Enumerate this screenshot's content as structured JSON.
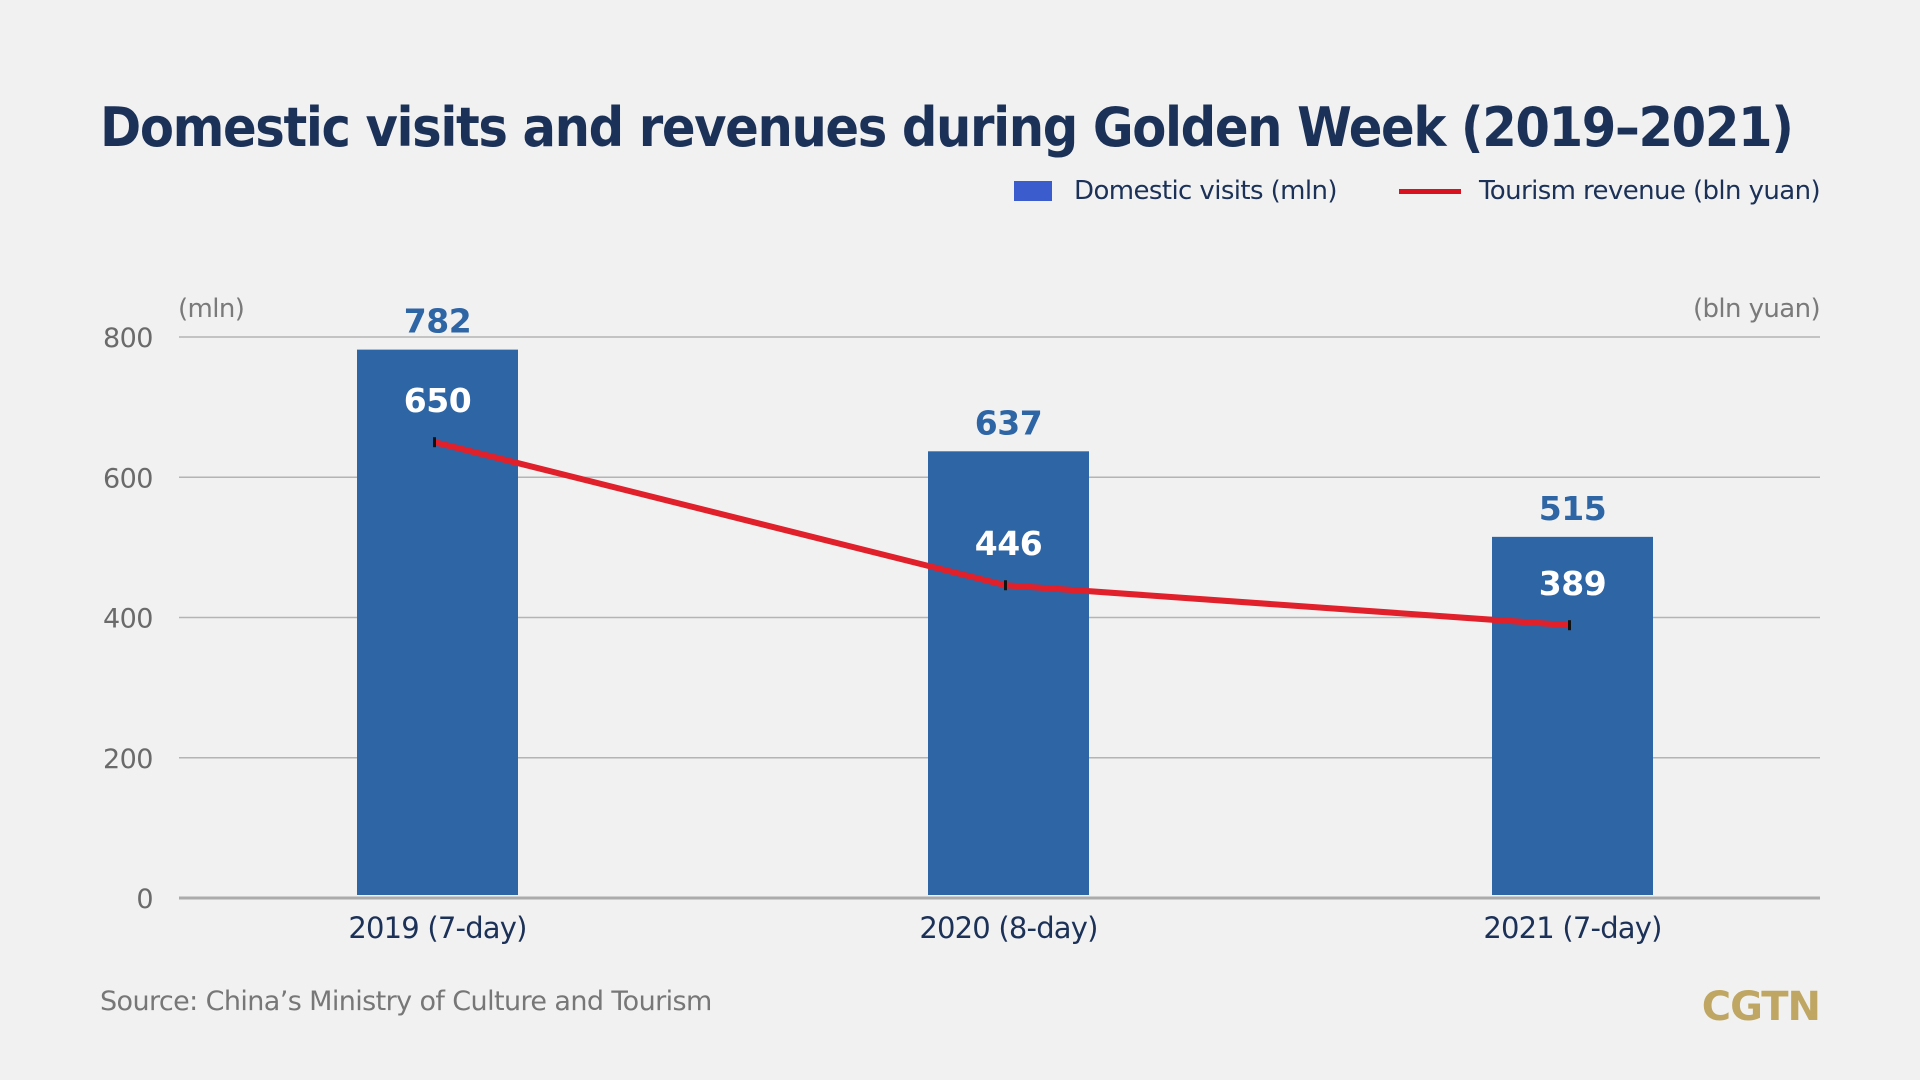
{
  "title": "Domestic visits and revenues during Golden Week (2019–2021)",
  "legend": [
    {
      "label": "Domestic visits (mln)",
      "type": "bar",
      "color": "#3a5ccc"
    },
    {
      "label": "Tourism revenue (bln yuan)",
      "type": "line",
      "color": "#d8121e"
    }
  ],
  "source": "Source: China’s Ministry of Culture and Tourism",
  "logo": "CGTN",
  "chart_data": {
    "type": "bar",
    "title": "Domestic visits and revenues during Golden Week (2019–2021)",
    "categories": [
      "2019 (7-day)",
      "2020 (8-day)",
      "2021 (7-day)"
    ],
    "series": [
      {
        "name": "Domestic visits (mln)",
        "type": "bar",
        "values": [
          782,
          637,
          515
        ],
        "color": "#2e65a5",
        "label_color": "#2e65a5"
      },
      {
        "name": "Tourism revenue (bln yuan)",
        "type": "line",
        "values": [
          650,
          446,
          389
        ],
        "color": "#e0202a",
        "label_color": "#ffffff"
      }
    ],
    "left_axis_unit": "(mln)",
    "right_axis_unit": "(bln yuan)",
    "yticks": [
      0,
      200,
      400,
      600,
      800
    ],
    "ylim": [
      0,
      800
    ],
    "grid": true,
    "legend_position": "top-right",
    "xlabel": "",
    "ylabel": ""
  }
}
